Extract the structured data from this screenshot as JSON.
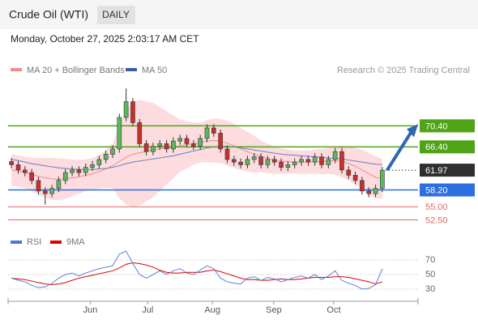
{
  "header": {
    "title": "Crude Oil (WTI)",
    "interval": "DAILY",
    "datetime": "Monday, October 27, 2025 2:03:17 AM CET"
  },
  "chart_data": {
    "type": "candlestick",
    "legend": {
      "bands": "MA 20 + Bollinger Bands",
      "ma50": "MA 50"
    },
    "credit": "Research © 2025 Trading Central",
    "up_color": "#5cb85c",
    "down_color": "#c9302c",
    "ylim": [
      51.2,
      79.7
    ],
    "xlim": [
      -0.5,
      60.3
    ],
    "xticks": [
      {
        "value": 11.7,
        "label": "Jun"
      },
      {
        "value": 20.2,
        "label": "Jul"
      },
      {
        "value": 29.8,
        "label": "Aug"
      },
      {
        "value": 38.9,
        "label": "Sep"
      },
      {
        "value": 47.8,
        "label": "Oct"
      }
    ],
    "candles": [
      [
        63.6,
        64.3,
        62.3,
        63
      ],
      [
        63,
        63.7,
        61.3,
        62
      ],
      [
        62,
        62.7,
        60.8,
        61.5
      ],
      [
        61.5,
        62.2,
        59.3,
        60
      ],
      [
        60,
        60.7,
        57.3,
        58
      ],
      [
        58,
        58.7,
        55.4,
        57.5
      ],
      [
        57.5,
        59.2,
        56.8,
        58.5
      ],
      [
        58.5,
        60.7,
        57.8,
        60
      ],
      [
        60,
        62.2,
        59.3,
        61.5
      ],
      [
        61.5,
        62.7,
        60.8,
        62
      ],
      [
        62,
        62.7,
        60.8,
        61.5
      ],
      [
        61.5,
        63.2,
        60.8,
        62.5
      ],
      [
        62.5,
        63.7,
        61.8,
        63
      ],
      [
        63,
        64.7,
        62.3,
        64
      ],
      [
        64,
        65.7,
        63.3,
        65
      ],
      [
        65,
        66.7,
        64.3,
        66
      ],
      [
        66,
        72.7,
        65.3,
        72
      ],
      [
        72,
        77.5,
        71.3,
        75
      ],
      [
        75,
        75.7,
        70.3,
        71
      ],
      [
        71,
        71.7,
        66.3,
        67
      ],
      [
        67,
        67.7,
        64.8,
        65.5
      ],
      [
        65.5,
        67.2,
        64.8,
        66.5
      ],
      [
        66.5,
        67.7,
        65.8,
        67
      ],
      [
        67,
        67.7,
        65.3,
        66
      ],
      [
        66,
        68.2,
        65.3,
        67.5
      ],
      [
        67.5,
        68.7,
        66.8,
        68
      ],
      [
        68,
        68.7,
        66.3,
        67
      ],
      [
        67,
        67.7,
        65.8,
        66.5
      ],
      [
        66.5,
        68.7,
        65.8,
        68
      ],
      [
        68,
        70.7,
        67.3,
        70
      ],
      [
        70,
        70.7,
        68.3,
        69
      ],
      [
        69,
        69.7,
        65.3,
        66
      ],
      [
        66,
        66.7,
        63.3,
        64
      ],
      [
        64,
        64.7,
        62.8,
        63.5
      ],
      [
        63.5,
        64.2,
        62.3,
        63
      ],
      [
        63,
        64.7,
        62.3,
        64
      ],
      [
        64,
        65.2,
        63.3,
        64.5
      ],
      [
        64.5,
        65.2,
        62.3,
        63
      ],
      [
        63,
        64.7,
        62.3,
        64
      ],
      [
        64,
        64.7,
        62.8,
        63.5
      ],
      [
        63.5,
        64.2,
        61.8,
        62.5
      ],
      [
        62.5,
        63.7,
        61.8,
        63
      ],
      [
        63,
        64.2,
        62.3,
        63.5
      ],
      [
        63.5,
        64.7,
        62.8,
        64
      ],
      [
        64,
        64.7,
        62.8,
        63.5
      ],
      [
        63.5,
        65.2,
        62.8,
        64.5
      ],
      [
        64.5,
        65.2,
        62.3,
        63
      ],
      [
        63,
        64.7,
        62.3,
        64
      ],
      [
        64,
        66.2,
        63.3,
        65.5
      ],
      [
        65.5,
        66.2,
        61.3,
        62
      ],
      [
        62,
        62.7,
        60.3,
        61
      ],
      [
        61,
        61.7,
        59.3,
        60
      ],
      [
        60,
        60.7,
        57.3,
        58
      ],
      [
        58,
        58.7,
        56.8,
        57.5
      ],
      [
        57.5,
        59.2,
        56.8,
        58.5
      ],
      [
        58.5,
        62.6,
        57.8,
        61.97
      ]
    ],
    "bb_upper": [
      65,
      64.8,
      64.5,
      64.4,
      64.3,
      64.3,
      64.3,
      64.2,
      64.1,
      64,
      63.9,
      64,
      64.3,
      64.9,
      65.8,
      67,
      70.6,
      73.4,
      75,
      75.3,
      75,
      74.8,
      74,
      73.2,
      72.4,
      71.6,
      71.3,
      71,
      71,
      71.5,
      71.8,
      71.7,
      71.4,
      70.8,
      70,
      69.3,
      68.5,
      67.6,
      67,
      66.5,
      66.1,
      65.9,
      65.7,
      65.7,
      65.7,
      65.9,
      66,
      66.2,
      66.5,
      66.6,
      66.4,
      66.2,
      65.8,
      65.3,
      64.6,
      64.1
    ],
    "bb_lower": [
      59,
      58.8,
      58.5,
      58,
      57.3,
      56.7,
      56.3,
      56.2,
      56.5,
      57,
      57.5,
      58,
      58.3,
      58.5,
      58.6,
      58.6,
      56.6,
      55.4,
      55,
      55.3,
      56,
      56.8,
      58,
      59.2,
      60.4,
      61.6,
      62.3,
      63,
      63.4,
      63.5,
      63.4,
      63.3,
      62.8,
      62.4,
      62,
      61.7,
      61.5,
      61.6,
      61.4,
      61.3,
      61.3,
      61.3,
      61.3,
      61.3,
      61.3,
      61.3,
      61.2,
      61.2,
      61.1,
      60.6,
      60,
      59.2,
      58.2,
      57.3,
      56.6,
      56.5
    ],
    "ma20": [
      62,
      61.8,
      61.5,
      61.2,
      60.8,
      60.5,
      60.3,
      60.2,
      60.3,
      60.5,
      60.7,
      61,
      61.3,
      61.7,
      62.2,
      62.8,
      63.6,
      64.4,
      65,
      65.3,
      65.5,
      65.8,
      66,
      66.2,
      66.4,
      66.6,
      66.8,
      67,
      67.2,
      67.5,
      67.6,
      67.5,
      67.1,
      66.6,
      66,
      65.5,
      65,
      64.6,
      64.2,
      63.9,
      63.7,
      63.6,
      63.5,
      63.5,
      63.5,
      63.6,
      63.6,
      63.7,
      63.8,
      63.6,
      63.2,
      62.7,
      62,
      61.3,
      60.6,
      60.3
    ],
    "ma50": [
      64,
      63.8,
      63.5,
      63.2,
      63,
      62.8,
      62.6,
      62.4,
      62.3,
      62.2,
      62.1,
      62.1,
      62.1,
      62.2,
      62.3,
      62.5,
      62.8,
      63.2,
      63.5,
      63.7,
      63.9,
      64.1,
      64.3,
      64.5,
      64.7,
      65,
      65.3,
      65.6,
      65.9,
      66.2,
      66.4,
      66.5,
      66.5,
      66.4,
      66.2,
      66,
      65.8,
      65.6,
      65.4,
      65.2,
      65,
      64.9,
      64.8,
      64.7,
      64.6,
      64.5,
      64.4,
      64.3,
      64.2,
      64.1,
      63.9,
      63.7,
      63.5,
      63.3,
      63.1,
      63
    ],
    "levels": [
      {
        "value": 70.4,
        "label": "70.40",
        "color": "#4fa317",
        "box": true
      },
      {
        "value": 66.4,
        "label": "66.40",
        "color": "#4fa317",
        "box": true
      },
      {
        "value": 61.97,
        "label": "61.97",
        "color": "#2f2f2f",
        "box": true,
        "dotted": true
      },
      {
        "value": 58.2,
        "label": "58.20",
        "color": "#2d6fe0",
        "box": true
      },
      {
        "value": 55,
        "label": "55.00",
        "color": "#e06666",
        "box": false
      },
      {
        "value": 52.5,
        "label": "52.50",
        "color": "#e06666",
        "box": false
      }
    ],
    "rsi": {
      "legend_rsi": "RSI",
      "legend_ma": "9MA",
      "ylim": [
        15.5,
        84.4
      ],
      "yticks": [
        30,
        50,
        70
      ],
      "values": [
        45,
        42,
        40,
        35,
        32,
        33,
        38,
        45,
        50,
        52,
        48,
        52,
        55,
        58,
        60,
        62,
        78,
        82,
        65,
        50,
        45,
        50,
        55,
        50,
        55,
        58,
        52,
        50,
        56,
        62,
        58,
        45,
        40,
        38,
        37,
        45,
        47,
        42,
        46,
        44,
        40,
        43,
        46,
        48,
        45,
        50,
        43,
        48,
        55,
        42,
        38,
        35,
        30,
        31,
        36,
        58
      ],
      "ma": [
        45,
        44,
        43,
        41,
        39,
        37,
        36,
        37,
        39,
        42,
        45,
        47,
        49,
        51,
        53,
        55,
        59,
        64,
        66,
        65,
        63,
        60,
        56,
        53,
        52,
        52,
        53,
        53,
        53,
        55,
        56,
        54,
        51,
        48,
        45,
        43,
        43,
        42,
        42,
        43,
        44,
        43,
        43,
        44,
        45,
        46,
        46,
        46,
        47,
        47,
        46,
        44,
        42,
        40,
        37,
        40
      ]
    }
  }
}
